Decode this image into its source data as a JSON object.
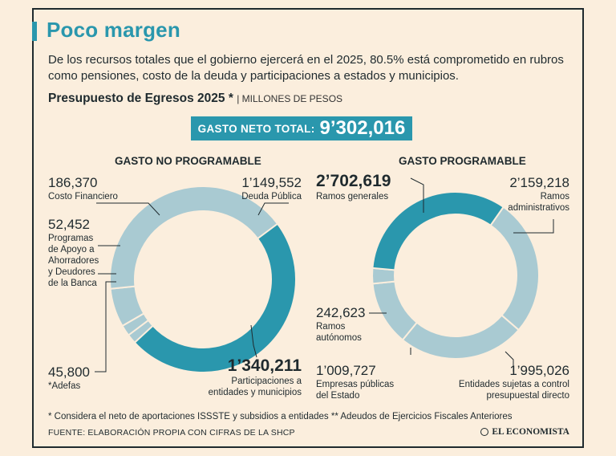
{
  "header": {
    "title": "Poco margen",
    "subtitle": "De los recursos totales que el gobierno ejercerá en el 2025, 80.5% está comprometido en rubros como pensiones, costo de la deuda y participaciones a estados y municipios.",
    "budget_label": "Presupuesto de Egresos 2025 *",
    "units": "| MILLONES DE PESOS",
    "total_label": "GASTO NETO TOTAL:",
    "total_value": "9’302,016"
  },
  "colors": {
    "accent": "#2a97ad",
    "light": "#a9cad2",
    "background": "#fbeedd",
    "text": "#1f2a2e"
  },
  "chart_data": [
    {
      "type": "pie",
      "title": "GASTO NO PROGRAMABLE",
      "start": "Costo Financiero",
      "slices": [
        {
          "label": "Costo Financiero",
          "value": 186370,
          "value_text": "186,370",
          "color": "#a9cad2"
        },
        {
          "label": "Deuda Pública",
          "value": 1149552,
          "value_text": "1’149,552",
          "color": "#a9cad2"
        },
        {
          "label": "Participaciones a entidades y municipios",
          "value": 1340211,
          "value_text": "1’340,211",
          "color": "#2a97ad"
        },
        {
          "label": "*Adefas",
          "value": 45800,
          "value_text": "45,800",
          "color": "#a9cad2"
        },
        {
          "label": "Programas de Apoyo a Ahorradores y Deudores de la Banca",
          "value": 52452,
          "value_text": "52,452",
          "color": "#a9cad2"
        }
      ]
    },
    {
      "type": "pie",
      "title": "GASTO PROGRAMABLE",
      "slices": [
        {
          "label": "Ramos administrativos",
          "value": 2159218,
          "value_text": "2’159,218",
          "color": "#a9cad2"
        },
        {
          "label": "Entidades sujetas a control presupuestal directo",
          "value": 1995026,
          "value_text": "1’995,026",
          "color": "#a9cad2"
        },
        {
          "label": "Empresas públicas del Estado",
          "value": 1009727,
          "value_text": "1’009,727",
          "color": "#a9cad2"
        },
        {
          "label": "Ramos autónomos",
          "value": 242623,
          "value_text": "242,623",
          "color": "#a9cad2"
        },
        {
          "label": "Ramos generales",
          "value": 2702619,
          "value_text": "2’702,619",
          "color": "#2a97ad"
        }
      ]
    }
  ],
  "labels": {
    "np_costo": {
      "value": "186,370",
      "text": "Costo Financiero"
    },
    "np_deuda": {
      "value": "1’149,552",
      "text": "Deuda Pública"
    },
    "np_apoyo": {
      "value": "52,452",
      "text1": "Programas",
      "text2": "de Apoyo a",
      "text3": "Ahorradores",
      "text4": "y Deudores",
      "text5": "de la Banca"
    },
    "np_adefas": {
      "value": "45,800",
      "text": "*Adefas"
    },
    "np_part": {
      "value": "1’340,211",
      "text1": "Participaciones a",
      "text2": "entidades y municipios"
    },
    "p_generales": {
      "value": "2’702,619",
      "text": "Ramos generales"
    },
    "p_admin": {
      "value": "2’159,218",
      "text1": "Ramos",
      "text2": "administrativos"
    },
    "p_autonomos": {
      "value": "242,623",
      "text1": "Ramos",
      "text2": "autónomos"
    },
    "p_empresas": {
      "value": "1’009,727",
      "text1": "Empresas públicas",
      "text2": "del Estado"
    },
    "p_entidades": {
      "value": "1’995,026",
      "text1": "Entidades sujetas a control",
      "text2": "presupuestal directo"
    }
  },
  "footer": {
    "note": "* Considera el neto de aportaciones ISSSTE y subsidios a entidades ** Adeudos de Ejercicios Fiscales Anteriores",
    "source": "FUENTE: ELABORACIÓN PROPIA CON CIFRAS DE LA SHCP",
    "brand": "EL ECONOMISTA"
  }
}
